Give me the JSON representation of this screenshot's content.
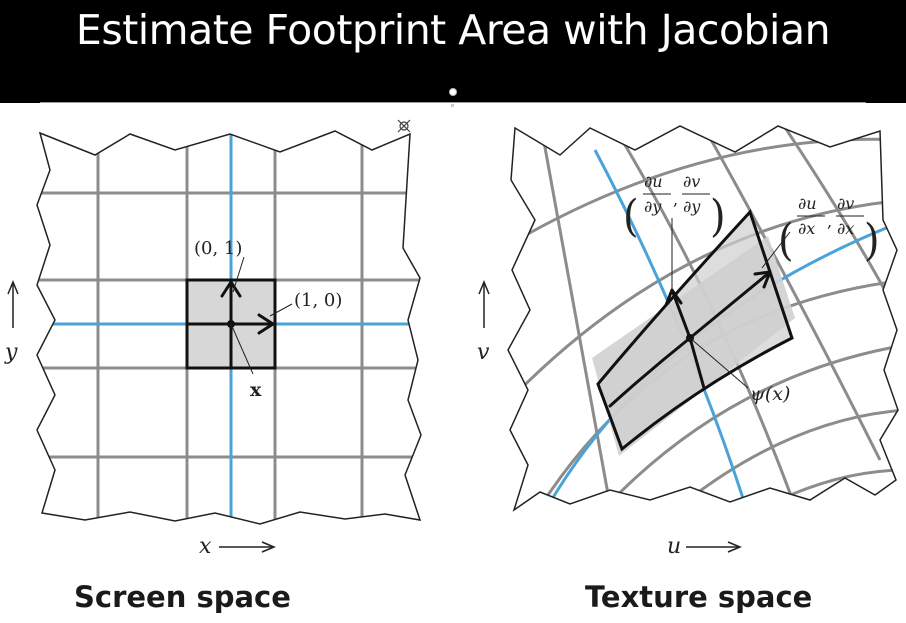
{
  "slide": {
    "title": "Estimate Footprint Area with Jacobian"
  },
  "screen_panel": {
    "caption": "Screen space",
    "label_dir_y": "(0, 1)",
    "label_dir_x": "(1, 0)",
    "label_point": "x",
    "axis_x": "x",
    "axis_y": "y"
  },
  "texture_panel": {
    "caption": "Texture space",
    "label_point": "ψ(x)",
    "axis_u": "u",
    "axis_v": "v",
    "vec_y": {
      "num1": "∂u",
      "den1": "∂y",
      "num2": "∂v",
      "den2": "∂y"
    },
    "vec_x": {
      "num1": "∂u",
      "den1": "∂x",
      "num2": "∂v",
      "den2": "∂x"
    }
  },
  "colors": {
    "grid": "#8c8c8c",
    "accent_blue": "#4aa3d8",
    "footprint_fill": "#d0d0d0",
    "outline": "#222222"
  }
}
